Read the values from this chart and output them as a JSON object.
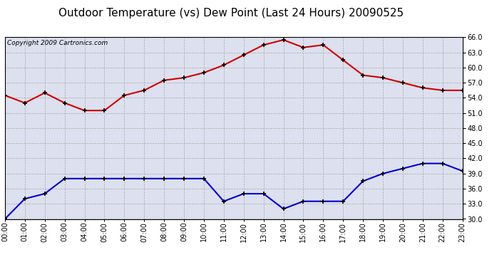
{
  "title": "Outdoor Temperature (vs) Dew Point (Last 24 Hours) 20090525",
  "copyright": "Copyright 2009 Cartronics.com",
  "hours": [
    "00:00",
    "01:00",
    "02:00",
    "03:00",
    "04:00",
    "05:00",
    "06:00",
    "07:00",
    "08:00",
    "09:00",
    "10:00",
    "11:00",
    "12:00",
    "13:00",
    "14:00",
    "15:00",
    "16:00",
    "17:00",
    "18:00",
    "19:00",
    "20:00",
    "21:00",
    "22:00",
    "23:00"
  ],
  "temp": [
    54.5,
    53.0,
    55.0,
    53.0,
    51.5,
    51.5,
    54.5,
    55.5,
    57.5,
    58.0,
    59.0,
    60.5,
    62.5,
    64.5,
    65.5,
    64.0,
    64.5,
    61.5,
    58.5,
    58.0,
    57.0,
    56.0,
    55.5,
    55.5
  ],
  "dew": [
    30.0,
    34.0,
    35.0,
    38.0,
    38.0,
    38.0,
    38.0,
    38.0,
    38.0,
    38.0,
    38.0,
    33.5,
    35.0,
    35.0,
    32.0,
    33.5,
    33.5,
    33.5,
    37.5,
    39.0,
    40.0,
    41.0,
    41.0,
    39.5
  ],
  "temp_color": "#cc0000",
  "dew_color": "#0000cc",
  "plot_bg": "#dde0ee",
  "outer_bg": "#ffffff",
  "grid_color": "#aaaaaa",
  "ylim": [
    30.0,
    66.0
  ],
  "yticks": [
    30.0,
    33.0,
    36.0,
    39.0,
    42.0,
    45.0,
    48.0,
    51.0,
    54.0,
    57.0,
    60.0,
    63.0,
    66.0
  ],
  "title_fontsize": 11,
  "copyright_fontsize": 6.5,
  "tick_fontsize": 7,
  "marker": "+",
  "marker_color": "#000000",
  "linewidth": 1.5,
  "marker_size": 5,
  "marker_linewidth": 1.2
}
